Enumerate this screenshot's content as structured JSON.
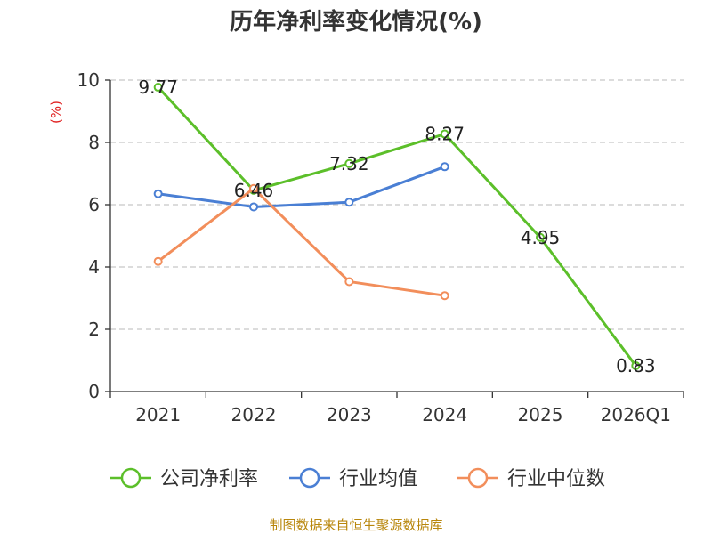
{
  "chart_data": {
    "type": "line",
    "title": "历年净利率变化情况(%)",
    "ylabel": "(%)",
    "xlabel": "",
    "ylim": [
      0,
      10
    ],
    "yticks": [
      0,
      2,
      4,
      6,
      8,
      10
    ],
    "grid": true,
    "legend_position": "bottom",
    "categories": [
      "2021",
      "2022",
      "2023",
      "2024",
      "2025",
      "2026Q1"
    ],
    "series": [
      {
        "name": "公司净利率",
        "color": "#5cbf2a",
        "labeled": true,
        "values": [
          9.77,
          6.46,
          7.32,
          8.27,
          4.95,
          0.83
        ]
      },
      {
        "name": "行业均值",
        "color": "#4a7fd4",
        "labeled": false,
        "values": [
          6.35,
          5.93,
          6.08,
          7.22,
          null,
          null
        ]
      },
      {
        "name": "行业中位数",
        "color": "#f28e5b",
        "labeled": false,
        "values": [
          4.18,
          6.52,
          3.53,
          3.08,
          null,
          null
        ]
      }
    ]
  },
  "source_text": "制图数据来自恒生聚源数据库"
}
